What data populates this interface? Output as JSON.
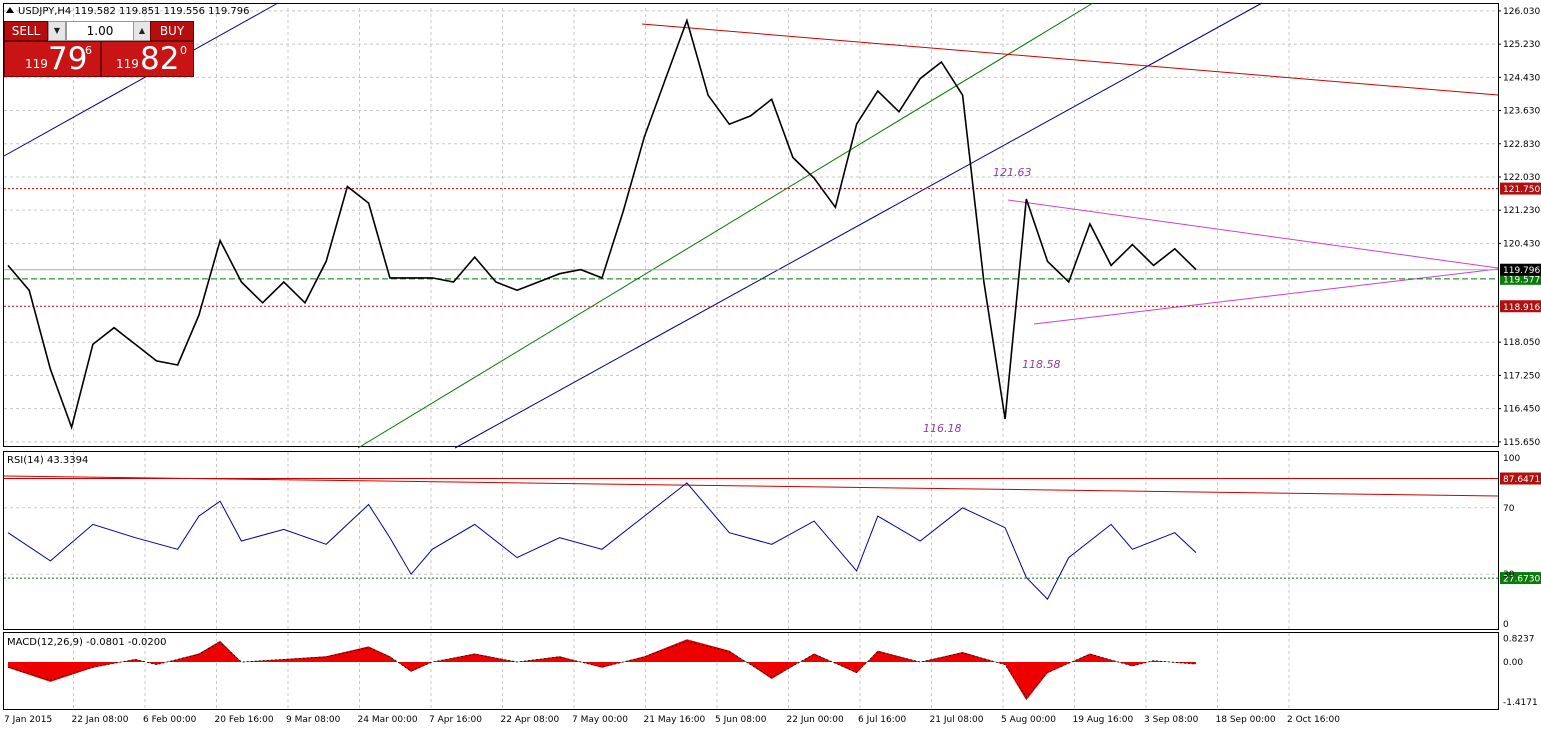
{
  "title": "USDJPY,H4",
  "ohlc": {
    "open": "119.582",
    "high": "119.851",
    "low": "119.556",
    "close": "119.796"
  },
  "trade_panel": {
    "sell_label": "SELL",
    "buy_label": "BUY",
    "lot": "1.00",
    "sell_big": "119",
    "sell_main": "79",
    "sell_sup": "6",
    "buy_big": "119",
    "buy_main": "82",
    "buy_sup": "0"
  },
  "colors": {
    "price": "#000000",
    "red_line": "#d00000",
    "green_line": "#007a00",
    "blue_line": "#00008b",
    "magenta": "#d040d0",
    "macd_fill": "#ee0000",
    "rsi_line": "#0000a0",
    "grid": "#c8c8c8",
    "tag_red": "#b01010",
    "tag_green": "#0a7a0a",
    "tag_black": "#000000"
  },
  "chart_data": [
    {
      "type": "line",
      "series_name": "USDJPY,H4",
      "x_ticks": [
        "7 Jan 2015",
        "22 Jan 08:00",
        "6 Feb 00:00",
        "20 Feb 16:00",
        "9 Mar 08:00",
        "24 Mar 00:00",
        "7 Apr 16:00",
        "22 Apr 08:00",
        "7 May 00:00",
        "21 May 16:00",
        "5 Jun 08:00",
        "22 Jun 00:00",
        "6 Jul 16:00",
        "21 Jul 08:00",
        "5 Aug 00:00",
        "19 Aug 16:00",
        "3 Sep 08:00",
        "18 Sep 00:00",
        "2 Oct 16:00"
      ],
      "y_ticks": [
        "126.030",
        "125.230",
        "124.430",
        "123.630",
        "122.830",
        "122.030",
        "121.230",
        "120.430",
        "118.050",
        "117.250",
        "116.450",
        "115.650"
      ],
      "ylim": [
        115.55,
        126.1
      ],
      "points": [
        [
          0,
          119.9
        ],
        [
          1,
          119.3
        ],
        [
          2,
          117.4
        ],
        [
          3,
          116.0
        ],
        [
          4,
          118.0
        ],
        [
          5,
          118.4
        ],
        [
          6,
          118.0
        ],
        [
          7,
          117.6
        ],
        [
          8,
          117.5
        ],
        [
          9,
          118.7
        ],
        [
          10,
          120.5
        ],
        [
          11,
          119.5
        ],
        [
          12,
          119.0
        ],
        [
          13,
          119.5
        ],
        [
          14,
          119.0
        ],
        [
          15,
          120.0
        ],
        [
          16,
          121.8
        ],
        [
          17,
          121.4
        ],
        [
          18,
          119.6
        ],
        [
          19,
          119.6
        ],
        [
          20,
          119.6
        ],
        [
          21,
          119.5
        ],
        [
          22,
          120.1
        ],
        [
          23,
          119.5
        ],
        [
          24,
          119.3
        ],
        [
          25,
          119.5
        ],
        [
          26,
          119.7
        ],
        [
          27,
          119.8
        ],
        [
          28,
          119.6
        ],
        [
          29,
          121.2
        ],
        [
          30,
          123.0
        ],
        [
          31,
          124.4
        ],
        [
          32,
          125.8
        ],
        [
          33,
          124.0
        ],
        [
          34,
          123.3
        ],
        [
          35,
          123.5
        ],
        [
          36,
          123.9
        ],
        [
          37,
          122.5
        ],
        [
          38,
          122.0
        ],
        [
          39,
          121.3
        ],
        [
          40,
          123.3
        ],
        [
          41,
          124.1
        ],
        [
          42,
          123.6
        ],
        [
          43,
          124.4
        ],
        [
          44,
          124.8
        ],
        [
          45,
          124.0
        ],
        [
          46,
          119.5
        ],
        [
          47,
          116.2
        ],
        [
          48,
          121.5
        ],
        [
          49,
          120.0
        ],
        [
          50,
          119.5
        ],
        [
          51,
          120.9
        ],
        [
          52,
          119.9
        ],
        [
          53,
          120.4
        ],
        [
          54,
          119.9
        ],
        [
          55,
          120.3
        ],
        [
          56,
          119.8
        ]
      ],
      "hlines": [
        {
          "value": 121.75,
          "label": "121.750",
          "style": "red-dotted"
        },
        {
          "value": 119.577,
          "label": "119.577",
          "style": "green-dashed"
        },
        {
          "value": 118.916,
          "label": "118.916",
          "style": "red-dotted"
        },
        {
          "value": 119.796,
          "label": "119.796",
          "style": "grey-solid"
        }
      ],
      "annotations": [
        "121.63",
        "118.58",
        "116.18"
      ]
    },
    {
      "type": "line",
      "title": "RSI(14) 43.3394",
      "y_ticks": [
        "100",
        "70",
        "30",
        "0"
      ],
      "ylim": [
        0,
        100
      ],
      "points": [
        [
          0,
          55
        ],
        [
          2,
          38
        ],
        [
          4,
          60
        ],
        [
          6,
          52
        ],
        [
          8,
          45
        ],
        [
          9,
          65
        ],
        [
          10,
          74
        ],
        [
          11,
          50
        ],
        [
          13,
          57
        ],
        [
          15,
          48
        ],
        [
          17,
          72
        ],
        [
          18,
          52
        ],
        [
          19,
          30
        ],
        [
          20,
          45
        ],
        [
          22,
          60
        ],
        [
          24,
          40
        ],
        [
          26,
          52
        ],
        [
          28,
          45
        ],
        [
          30,
          65
        ],
        [
          32,
          85
        ],
        [
          34,
          55
        ],
        [
          36,
          48
        ],
        [
          38,
          62
        ],
        [
          40,
          32
        ],
        [
          41,
          65
        ],
        [
          43,
          50
        ],
        [
          45,
          70
        ],
        [
          47,
          58
        ],
        [
          48,
          28
        ],
        [
          49,
          15
        ],
        [
          50,
          40
        ],
        [
          52,
          60
        ],
        [
          53,
          45
        ],
        [
          55,
          55
        ],
        [
          56,
          43
        ]
      ],
      "hlines": [
        {
          "value": 87.6471,
          "label": "87.6471",
          "style": "red-solid"
        },
        {
          "value": 27.673,
          "label": "27.6730",
          "style": "green-dashed"
        }
      ]
    },
    {
      "type": "area",
      "title": "MACD(12,26,9) -0.0801 -0.0200",
      "y_ticks": [
        "0.8237",
        "0.00",
        "-1.4171"
      ],
      "ylim": [
        -1.55,
        0.95
      ],
      "points": [
        [
          0,
          -0.2
        ],
        [
          2,
          -0.7
        ],
        [
          4,
          -0.2
        ],
        [
          6,
          0.1
        ],
        [
          7,
          -0.1
        ],
        [
          9,
          0.3
        ],
        [
          10,
          0.75
        ],
        [
          11,
          0.0
        ],
        [
          13,
          0.1
        ],
        [
          15,
          0.2
        ],
        [
          17,
          0.55
        ],
        [
          18,
          0.2
        ],
        [
          19,
          -0.35
        ],
        [
          20,
          0.0
        ],
        [
          22,
          0.3
        ],
        [
          24,
          0.0
        ],
        [
          26,
          0.2
        ],
        [
          28,
          -0.2
        ],
        [
          30,
          0.2
        ],
        [
          32,
          0.8
        ],
        [
          34,
          0.4
        ],
        [
          36,
          -0.6
        ],
        [
          38,
          0.3
        ],
        [
          40,
          -0.4
        ],
        [
          41,
          0.4
        ],
        [
          43,
          0.0
        ],
        [
          45,
          0.35
        ],
        [
          47,
          -0.1
        ],
        [
          48,
          -1.35
        ],
        [
          49,
          -0.4
        ],
        [
          51,
          0.3
        ],
        [
          53,
          -0.15
        ],
        [
          54,
          0.05
        ],
        [
          56,
          -0.08
        ]
      ]
    }
  ]
}
